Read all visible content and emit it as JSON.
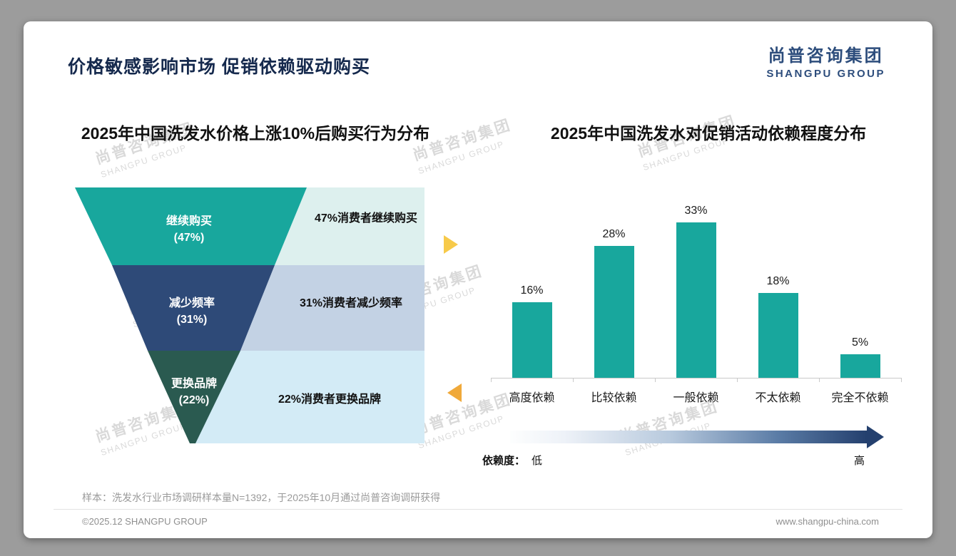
{
  "slide": {
    "title": "价格敏感影响市场 促销依赖驱动购买",
    "logo_cn": "尚普咨询集团",
    "logo_en": "SHANGPU GROUP",
    "watermark_cn": "尚普咨询集团",
    "watermark_en": "SHANGPU GROUP",
    "sample_note": "样本：洗发水行业市场调研样本量N=1392，于2025年10月通过尚普咨询调研获得",
    "footer_left": "©2025.12 SHANGPU GROUP",
    "footer_right": "www.shangpu-china.com"
  },
  "colors": {
    "logo_navy": "#2d4d7c",
    "bar_teal": "#18a79d",
    "arrow_yellow": "#f7ca4a",
    "arrow_orange": "#f0a93a",
    "gradient_dark_navy": "#24406e"
  },
  "chart_data": [
    {
      "type": "funnel",
      "title": "2025年中国洗发水价格上涨10%后购买行为分布",
      "stages": [
        {
          "label": "继续购买",
          "value": 47,
          "value_label": "(47%)",
          "desc": "47%消费者继续购买",
          "color": "#18a79d",
          "desc_bg": "#ddf0ee"
        },
        {
          "label": "减少频率",
          "value": 31,
          "value_label": "(31%)",
          "desc": "31%消费者减少频率",
          "color": "#2e4a78",
          "desc_bg": "#c3d2e4"
        },
        {
          "label": "更换品牌",
          "value": 22,
          "value_label": "(22%)",
          "desc": "22%消费者更换品牌",
          "color": "#2a5a50",
          "desc_bg": "#d3ebf6"
        }
      ]
    },
    {
      "type": "bar",
      "title": "2025年中国洗发水对促销活动依赖程度分布",
      "categories": [
        "高度依赖",
        "比较依赖",
        "一般依赖",
        "不太依赖",
        "完全不依赖"
      ],
      "values": [
        16,
        28,
        33,
        18,
        5
      ],
      "value_labels": [
        "16%",
        "28%",
        "33%",
        "18%",
        "5%"
      ],
      "bar_color": "#18a79d",
      "ylim": [
        0,
        35
      ],
      "grid": false,
      "legend": "none",
      "dependency_axis": {
        "label": "依赖度：",
        "low": "低",
        "high": "高"
      }
    }
  ]
}
